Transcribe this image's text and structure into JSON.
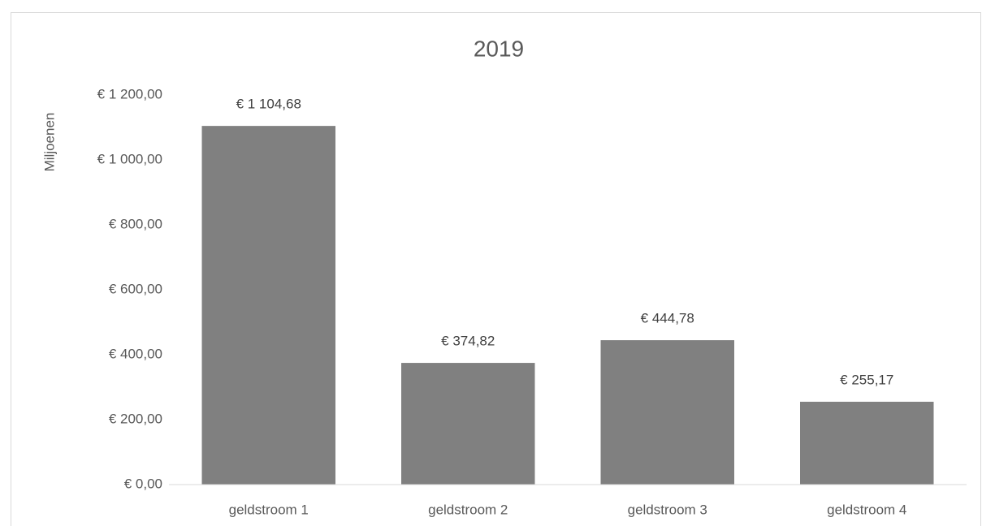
{
  "chart_data": {
    "type": "bar",
    "title": "2019",
    "y_label": "Miljoenen",
    "categories": [
      "geldstroom 1",
      "geldstroom 2",
      "geldstroom 3",
      "geldstroom 4"
    ],
    "values": [
      1104.68,
      374.82,
      444.78,
      255.17
    ],
    "value_labels": [
      "€ 1 104,68",
      "€ 374,82",
      "€ 444,78",
      "€ 255,17"
    ],
    "color": "#808080",
    "ylim": [
      0,
      1200
    ],
    "yticks": [
      {
        "value": 0,
        "label": "€ 0,00"
      },
      {
        "value": 200,
        "label": "€ 200,00"
      },
      {
        "value": 400,
        "label": "€ 400,00"
      },
      {
        "value": 600,
        "label": "€ 600,00"
      },
      {
        "value": 800,
        "label": "€ 800,00"
      },
      {
        "value": 1000,
        "label": "€ 1 000,00"
      },
      {
        "value": 1200,
        "label": "€ 1 200,00"
      }
    ],
    "grid": false
  }
}
